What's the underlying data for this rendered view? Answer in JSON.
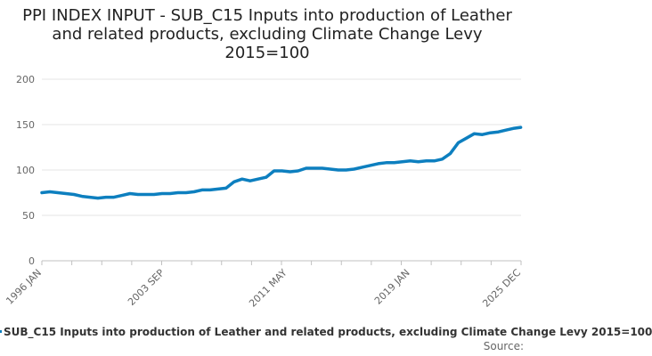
{
  "chart_data": {
    "type": "line",
    "title": "PPI INDEX INPUT - SUB_C15 Inputs into production of Leather and related products, excluding Climate Change Levy 2015=100",
    "xlabel": "",
    "ylabel": "",
    "ylim": [
      0,
      200
    ],
    "y_ticks": [
      "0",
      "50",
      "100",
      "150",
      "200"
    ],
    "x_tick_labels": [
      "1996 JAN",
      "2003 SEP",
      "2011 MAY",
      "2019 JAN",
      "2025 DEC"
    ],
    "grid": true,
    "series": [
      {
        "name": "SUB_C15 Inputs into production of Leather and related products, excluding Climate Change Levy 2015=100",
        "color": "#0d7fbf",
        "x": [
          1996.0,
          1996.5,
          1997.0,
          1997.5,
          1998.0,
          1998.5,
          1999.0,
          1999.5,
          2000.0,
          2000.5,
          2001.0,
          2001.5,
          2002.0,
          2002.5,
          2003.0,
          2003.5,
          2004.0,
          2004.5,
          2005.0,
          2005.5,
          2006.0,
          2006.5,
          2007.0,
          2007.5,
          2008.0,
          2008.5,
          2009.0,
          2009.5,
          2010.0,
          2010.5,
          2011.0,
          2011.5,
          2012.0,
          2012.5,
          2013.0,
          2013.5,
          2014.0,
          2014.5,
          2015.0,
          2015.5,
          2016.0,
          2016.5,
          2017.0,
          2017.5,
          2018.0,
          2018.5,
          2019.0,
          2019.5,
          2020.0,
          2020.5,
          2021.0,
          2021.5,
          2022.0,
          2022.5,
          2023.0,
          2023.5,
          2024.0,
          2024.5,
          2025.0,
          2025.5,
          2025.9
        ],
        "values": [
          75,
          76,
          75,
          74,
          73,
          71,
          70,
          69,
          70,
          70,
          72,
          74,
          73,
          73,
          73,
          74,
          74,
          75,
          75,
          76,
          78,
          78,
          79,
          80,
          87,
          90,
          88,
          90,
          92,
          99,
          99,
          98,
          99,
          102,
          102,
          102,
          101,
          100,
          100,
          101,
          103,
          105,
          107,
          108,
          108,
          109,
          110,
          109,
          110,
          110,
          112,
          118,
          130,
          135,
          140,
          139,
          141,
          142,
          144,
          146,
          147
        ]
      }
    ]
  },
  "legend": {
    "label": "SUB_C15 Inputs into production of Leather and related products, excluding Climate Change Levy 2015=100"
  },
  "source": {
    "label": "Source:"
  }
}
